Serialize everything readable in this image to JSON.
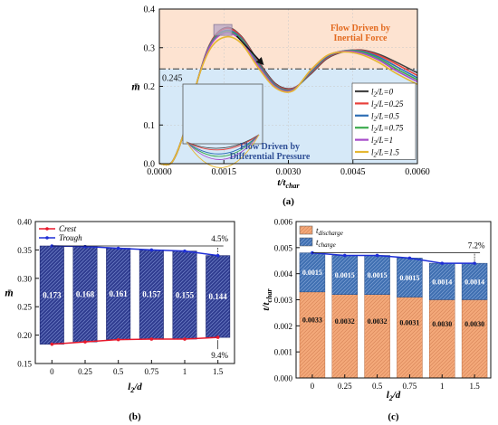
{
  "panels": {
    "a": "(a)",
    "b": "(b)",
    "c": "(c)"
  },
  "chart_data": [
    {
      "id": "a",
      "type": "line",
      "xlabel_main": "t/t",
      "xlabel_sub": "char",
      "ylabel": "m̄",
      "xlim": [
        0,
        0.006
      ],
      "ylim": [
        0,
        0.4
      ],
      "xticks": [
        0,
        0.0015,
        0.003,
        0.0045,
        0.006
      ],
      "xtick_labels": [
        "0.0000",
        "0.0015",
        "0.0030",
        "0.0045",
        "0.0060"
      ],
      "yticks": [
        0,
        0.1,
        0.2,
        0.3,
        0.4
      ],
      "ytick_labels": [
        "0.0",
        "0.1",
        "0.2",
        "0.3",
        "0.4"
      ],
      "threshold": 0.245,
      "threshold_label": "0.245",
      "region_upper_label": [
        "Flow Driven by",
        "Inertial Force"
      ],
      "region_lower_label": [
        "Flow Driven by",
        "Differential Pressure"
      ],
      "legend_position": "bottom-right",
      "legend_prefix": "l",
      "legend_sub": "2",
      "legend_mid": "/L=",
      "series": [
        {
          "name": "l2/L=0",
          "legend_value": "0",
          "color": "#444444",
          "points": [
            [
              0,
              0
            ],
            [
              0.0003,
              0.005
            ],
            [
              0.0006,
              0.09
            ],
            [
              0.0009,
              0.22
            ],
            [
              0.0012,
              0.315
            ],
            [
              0.00155,
              0.352
            ],
            [
              0.0019,
              0.33
            ],
            [
              0.0023,
              0.265
            ],
            [
              0.0027,
              0.207
            ],
            [
              0.0031,
              0.195
            ],
            [
              0.0035,
              0.23
            ],
            [
              0.0039,
              0.272
            ],
            [
              0.0043,
              0.29
            ],
            [
              0.0047,
              0.294
            ],
            [
              0.0051,
              0.283
            ],
            [
              0.0055,
              0.263
            ],
            [
              0.006,
              0.235
            ]
          ]
        },
        {
          "name": "l2/L=0.25",
          "legend_value": "0.25",
          "color": "#e8413c",
          "points": [
            [
              0,
              0
            ],
            [
              0.0003,
              0.005
            ],
            [
              0.0006,
              0.09
            ],
            [
              0.0009,
              0.22
            ],
            [
              0.0012,
              0.314
            ],
            [
              0.00155,
              0.35
            ],
            [
              0.0019,
              0.328
            ],
            [
              0.0023,
              0.262
            ],
            [
              0.0027,
              0.205
            ],
            [
              0.0031,
              0.194
            ],
            [
              0.0035,
              0.232
            ],
            [
              0.0039,
              0.274
            ],
            [
              0.0043,
              0.291
            ],
            [
              0.0047,
              0.293
            ],
            [
              0.0051,
              0.28
            ],
            [
              0.0055,
              0.258
            ],
            [
              0.006,
              0.228
            ]
          ]
        },
        {
          "name": "l2/L=0.5",
          "legend_value": "0.5",
          "color": "#2f6fb5",
          "points": [
            [
              0,
              0
            ],
            [
              0.0003,
              0.005
            ],
            [
              0.0006,
              0.09
            ],
            [
              0.0009,
              0.22
            ],
            [
              0.0012,
              0.312
            ],
            [
              0.00155,
              0.345
            ],
            [
              0.0019,
              0.325
            ],
            [
              0.0023,
              0.26
            ],
            [
              0.0027,
              0.203
            ],
            [
              0.0031,
              0.192
            ],
            [
              0.0035,
              0.234
            ],
            [
              0.0039,
              0.276
            ],
            [
              0.0043,
              0.292
            ],
            [
              0.0047,
              0.291
            ],
            [
              0.0051,
              0.276
            ],
            [
              0.0055,
              0.252
            ],
            [
              0.006,
              0.222
            ]
          ]
        },
        {
          "name": "l2/L=0.75",
          "legend_value": "0.75",
          "color": "#3dab4f",
          "points": [
            [
              0,
              0
            ],
            [
              0.0003,
              0.005
            ],
            [
              0.0006,
              0.09
            ],
            [
              0.0009,
              0.22
            ],
            [
              0.0012,
              0.31
            ],
            [
              0.00155,
              0.342
            ],
            [
              0.0019,
              0.322
            ],
            [
              0.0023,
              0.257
            ],
            [
              0.0027,
              0.201
            ],
            [
              0.0031,
              0.191
            ],
            [
              0.0035,
              0.236
            ],
            [
              0.0039,
              0.278
            ],
            [
              0.0043,
              0.292
            ],
            [
              0.0047,
              0.289
            ],
            [
              0.0051,
              0.272
            ],
            [
              0.0055,
              0.246
            ],
            [
              0.006,
              0.217
            ]
          ]
        },
        {
          "name": "l2/L=1",
          "legend_value": "1",
          "color": "#a64ac9",
          "points": [
            [
              0,
              0
            ],
            [
              0.0003,
              0.005
            ],
            [
              0.0006,
              0.09
            ],
            [
              0.0009,
              0.22
            ],
            [
              0.0012,
              0.308
            ],
            [
              0.00155,
              0.338
            ],
            [
              0.0019,
              0.319
            ],
            [
              0.0023,
              0.254
            ],
            [
              0.0027,
              0.199
            ],
            [
              0.0031,
              0.19
            ],
            [
              0.0035,
              0.238
            ],
            [
              0.0039,
              0.279
            ],
            [
              0.0043,
              0.291
            ],
            [
              0.0047,
              0.286
            ],
            [
              0.0051,
              0.268
            ],
            [
              0.0055,
              0.241
            ],
            [
              0.006,
              0.212
            ]
          ]
        },
        {
          "name": "l2/L=1.5",
          "legend_value": "1.5",
          "color": "#e5b732",
          "points": [
            [
              0,
              0
            ],
            [
              0.0003,
              0.005
            ],
            [
              0.0006,
              0.09
            ],
            [
              0.0009,
              0.22
            ],
            [
              0.0012,
              0.3
            ],
            [
              0.00155,
              0.328
            ],
            [
              0.0019,
              0.312
            ],
            [
              0.0023,
              0.248
            ],
            [
              0.0027,
              0.196
            ],
            [
              0.0031,
              0.188
            ],
            [
              0.0035,
              0.24
            ],
            [
              0.0039,
              0.28
            ],
            [
              0.0043,
              0.289
            ],
            [
              0.0047,
              0.282
            ],
            [
              0.0051,
              0.262
            ],
            [
              0.0055,
              0.234
            ],
            [
              0.006,
              0.205
            ]
          ]
        }
      ]
    },
    {
      "id": "b",
      "type": "bar",
      "xlabel_main": "l",
      "xlabel_sub": "2",
      "xlabel_tail": "/d",
      "ylabel": "m̄",
      "categories": [
        "0",
        "0.25",
        "0.5",
        "0.75",
        "1",
        "1.5"
      ],
      "ylim": [
        0.15,
        0.4
      ],
      "yticks": [
        0.15,
        0.2,
        0.25,
        0.3,
        0.35,
        0.4
      ],
      "ytick_labels": [
        "0.15",
        "0.20",
        "0.25",
        "0.30",
        "0.35",
        "0.40"
      ],
      "crest": [
        0.357,
        0.356,
        0.353,
        0.35,
        0.348,
        0.34
      ],
      "trough": [
        0.184,
        0.188,
        0.192,
        0.193,
        0.193,
        0.196
      ],
      "bar_labels": [
        "0.173",
        "0.168",
        "0.161",
        "0.157",
        "0.155",
        "0.144"
      ],
      "legend": [
        "Crest",
        "Trough"
      ],
      "legend_position": "top-left",
      "annotations": [
        "4.5%",
        "9.4%"
      ],
      "colors": {
        "bar": "#2e3b8f",
        "crest": "#e8192c",
        "trough": "#1f2fd6"
      }
    },
    {
      "id": "c",
      "type": "bar",
      "stacked": true,
      "xlabel_main": "l",
      "xlabel_sub": "2",
      "xlabel_tail": "/d",
      "ylabel_main": "t/t",
      "ylabel_sub": "char",
      "categories": [
        "0",
        "0.25",
        "0.5",
        "0.75",
        "1",
        "1.5"
      ],
      "ylim": [
        0,
        0.006
      ],
      "yticks": [
        0,
        0.001,
        0.002,
        0.003,
        0.004,
        0.005,
        0.006
      ],
      "ytick_labels": [
        "0.000",
        "0.001",
        "0.002",
        "0.003",
        "0.004",
        "0.005",
        "0.006"
      ],
      "series": [
        {
          "name": "t_discharge",
          "name_main": "t",
          "name_sub": "discharge",
          "values": [
            0.0033,
            0.0032,
            0.0032,
            0.0031,
            0.003,
            0.003
          ],
          "labels": [
            "0.0033",
            "0.0032",
            "0.0032",
            "0.0031",
            "0.0030",
            "0.0030"
          ],
          "color": "#f4a97a"
        },
        {
          "name": "t_charge",
          "name_main": "t",
          "name_sub": "charge",
          "values": [
            0.0015,
            0.0015,
            0.0015,
            0.0015,
            0.0014,
            0.0014
          ],
          "labels": [
            "0.0015",
            "0.0015",
            "0.0015",
            "0.0015",
            "0.0014",
            "0.0014"
          ],
          "color": "#3f6fb1"
        }
      ],
      "totals": [
        0.0048,
        0.0047,
        0.0047,
        0.0046,
        0.0044,
        0.0044
      ],
      "legend_position": "top-left",
      "annotations": [
        "7.2%"
      ],
      "line_color": "#1f2fd6"
    }
  ]
}
